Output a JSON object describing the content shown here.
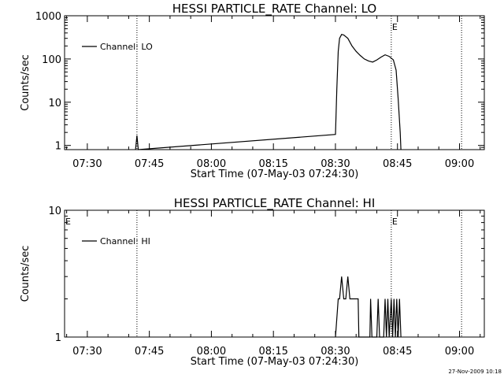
{
  "chart_data": [
    {
      "type": "line",
      "title": "HESSI PARTICLE_RATE Channel: LO",
      "xlabel": "Start Time (07-May-03 07:24:30)",
      "ylabel": "Counts/sec",
      "yscale": "log",
      "ylim": [
        0.8,
        1000
      ],
      "xlim": [
        "07:24:30",
        "09:06:00"
      ],
      "x_ticks": [
        "07:30",
        "07:45",
        "08:00",
        "08:15",
        "08:30",
        "08:45",
        "09:00"
      ],
      "y_ticks": [
        "1",
        "10",
        "100",
        "1000"
      ],
      "grid": false,
      "legend": {
        "position": "top-left",
        "entries": [
          "Channel: LO"
        ]
      },
      "markers": [
        {
          "time": "07:42:00",
          "label": ""
        },
        {
          "time": "08:43:30",
          "label": "E"
        },
        {
          "time": "09:00:30",
          "label": ""
        }
      ],
      "series": [
        {
          "name": "Channel: LO",
          "points": [
            [
              "07:41:40",
              0.8
            ],
            [
              "07:42:00",
              1.7
            ],
            [
              "07:42:20",
              0.8
            ],
            [
              "08:30:00",
              1.8
            ],
            [
              "08:30:20",
              20
            ],
            [
              "08:30:40",
              150
            ],
            [
              "08:31:00",
              300
            ],
            [
              "08:31:30",
              370
            ],
            [
              "08:32:00",
              360
            ],
            [
              "08:33:00",
              300
            ],
            [
              "08:34:00",
              200
            ],
            [
              "08:35:00",
              150
            ],
            [
              "08:36:00",
              120
            ],
            [
              "08:37:00",
              100
            ],
            [
              "08:38:00",
              90
            ],
            [
              "08:39:00",
              85
            ],
            [
              "08:40:00",
              95
            ],
            [
              "08:41:00",
              110
            ],
            [
              "08:42:00",
              125
            ],
            [
              "08:43:00",
              115
            ],
            [
              "08:44:00",
              95
            ],
            [
              "08:44:40",
              55
            ],
            [
              "08:45:10",
              12
            ],
            [
              "08:45:40",
              2
            ],
            [
              "08:45:50",
              0.8
            ]
          ]
        }
      ]
    },
    {
      "type": "line",
      "title": "HESSI PARTICLE_RATE Channel: HI",
      "xlabel": "Start Time (07-May-03 07:24:30)",
      "ylabel": "Counts/sec",
      "yscale": "log",
      "ylim": [
        1,
        10
      ],
      "xlim": [
        "07:24:30",
        "09:06:00"
      ],
      "x_ticks": [
        "07:30",
        "07:45",
        "08:00",
        "08:15",
        "08:30",
        "08:45",
        "09:00"
      ],
      "y_ticks": [
        "1",
        "10"
      ],
      "grid": false,
      "legend": {
        "position": "top-left",
        "entries": [
          "Channel: HI"
        ]
      },
      "markers": [
        {
          "time": "07:24:30",
          "label": "E"
        },
        {
          "time": "07:42:00",
          "label": ""
        },
        {
          "time": "08:43:30",
          "label": "E"
        },
        {
          "time": "09:00:30",
          "label": ""
        }
      ],
      "series": [
        {
          "name": "Channel: HI",
          "points": [
            [
              "08:30:00",
              1
            ],
            [
              "08:30:40",
              2
            ],
            [
              "08:31:00",
              2
            ],
            [
              "08:31:30",
              3
            ],
            [
              "08:32:00",
              2
            ],
            [
              "08:32:30",
              2
            ],
            [
              "08:33:00",
              3
            ],
            [
              "08:33:30",
              2
            ],
            [
              "08:35:30",
              2
            ],
            [
              "08:35:40",
              1
            ],
            [
              "08:38:20",
              1
            ],
            [
              "08:38:30",
              2
            ],
            [
              "08:38:50",
              1
            ],
            [
              "08:40:00",
              1
            ],
            [
              "08:40:20",
              2
            ],
            [
              "08:40:40",
              1
            ],
            [
              "08:41:40",
              1
            ],
            [
              "08:42:00",
              2
            ],
            [
              "08:42:20",
              1
            ],
            [
              "08:42:40",
              2
            ],
            [
              "08:43:00",
              1
            ],
            [
              "08:43:30",
              2
            ],
            [
              "08:43:50",
              1
            ],
            [
              "08:44:10",
              2
            ],
            [
              "08:44:30",
              1
            ],
            [
              "08:44:50",
              2
            ],
            [
              "08:45:10",
              1
            ],
            [
              "08:45:30",
              2
            ],
            [
              "08:45:50",
              1
            ]
          ]
        }
      ]
    }
  ],
  "footer": {
    "timestamp": "27-Nov-2009 10:18"
  }
}
